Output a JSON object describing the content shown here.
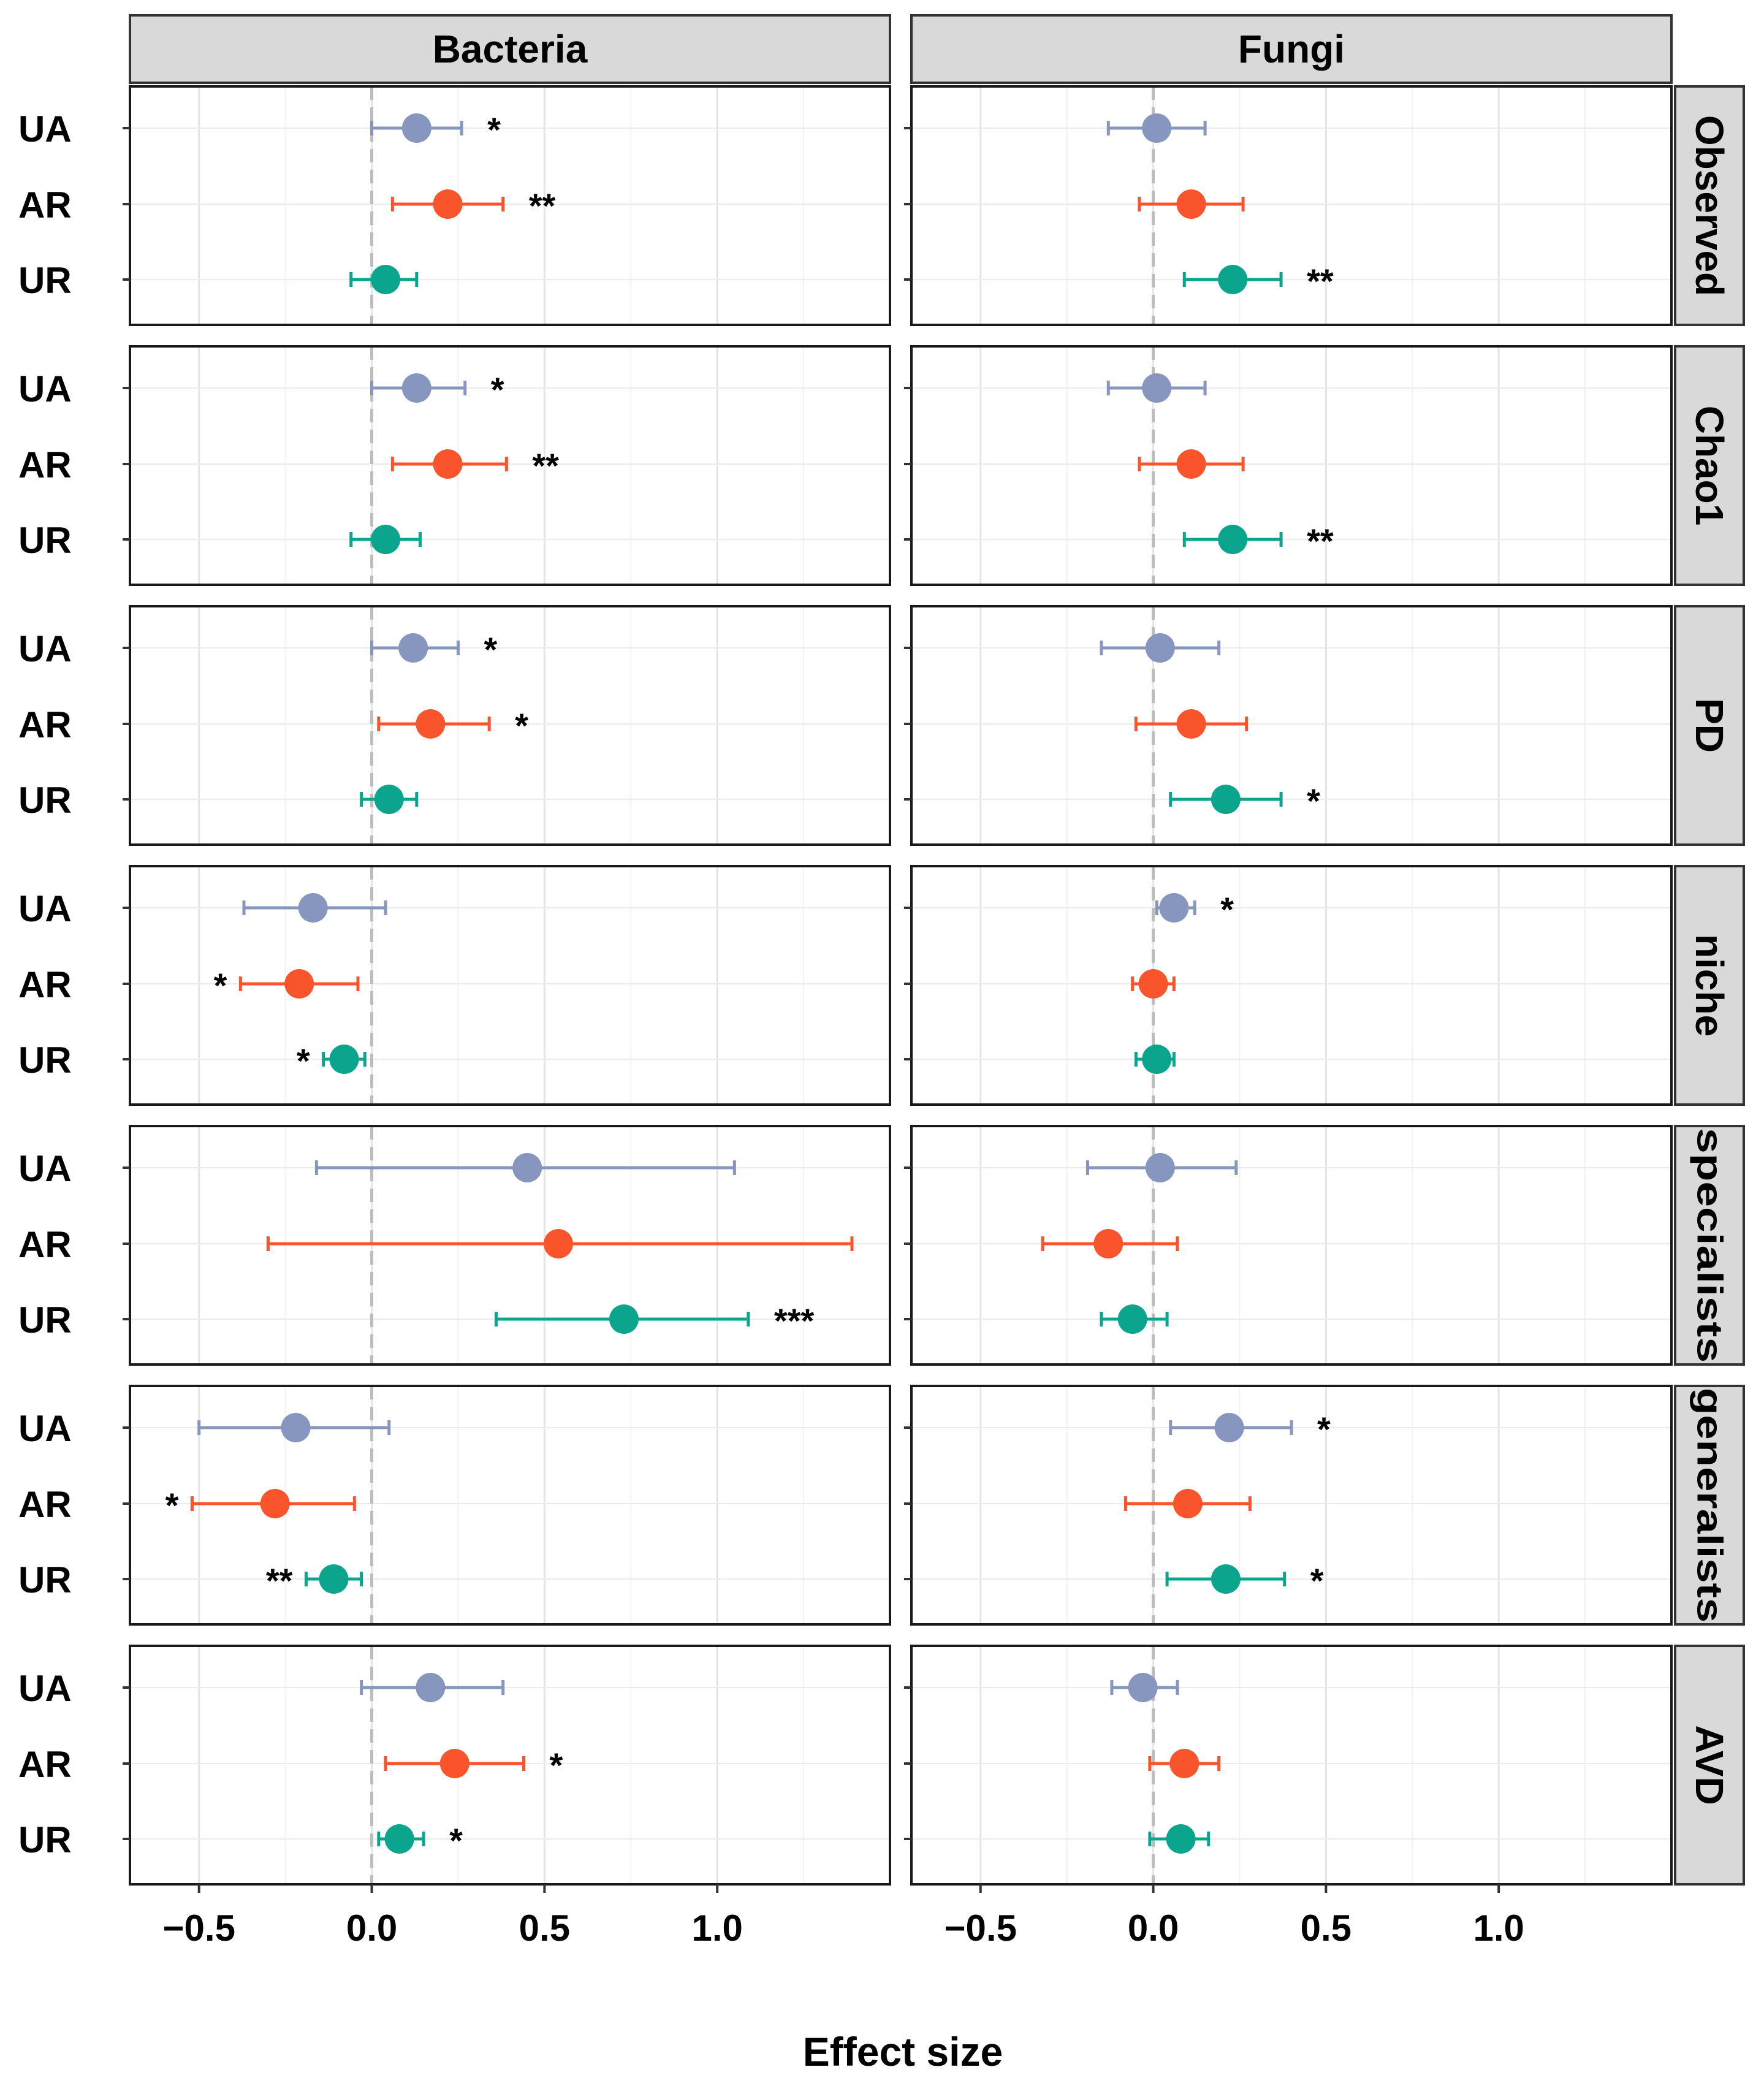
{
  "chart_data": {
    "type": "forest",
    "xlabel": "Effect size",
    "columns": [
      "Bacteria",
      "Fungi"
    ],
    "row_strips": [
      "Observed",
      "Chao1",
      "PD",
      "niche",
      "specialists",
      "generalists",
      "AVD"
    ],
    "groups": [
      "UA",
      "AR",
      "UR"
    ],
    "xlim": [
      -0.7,
      1.5
    ],
    "xticks": [
      -0.5,
      0.0,
      0.5,
      1.0
    ],
    "xtick_labels": [
      "−0.5",
      "0.0",
      "0.5",
      "1.0"
    ],
    "reference_line": 0,
    "grid": true,
    "colors": {
      "UA": "#8796BE",
      "AR": "#F9542B",
      "UR": "#0BA48C"
    },
    "panels": [
      {
        "row": "Observed",
        "column": "Bacteria",
        "points": [
          {
            "group": "UA",
            "est": 0.13,
            "lo": 0.0,
            "hi": 0.26,
            "sig": "*"
          },
          {
            "group": "AR",
            "est": 0.22,
            "lo": 0.06,
            "hi": 0.38,
            "sig": "**"
          },
          {
            "group": "UR",
            "est": 0.04,
            "lo": -0.06,
            "hi": 0.13,
            "sig": ""
          }
        ]
      },
      {
        "row": "Observed",
        "column": "Fungi",
        "points": [
          {
            "group": "UA",
            "est": 0.01,
            "lo": -0.13,
            "hi": 0.15,
            "sig": ""
          },
          {
            "group": "AR",
            "est": 0.11,
            "lo": -0.04,
            "hi": 0.26,
            "sig": ""
          },
          {
            "group": "UR",
            "est": 0.23,
            "lo": 0.09,
            "hi": 0.37,
            "sig": "**"
          }
        ]
      },
      {
        "row": "Chao1",
        "column": "Bacteria",
        "points": [
          {
            "group": "UA",
            "est": 0.13,
            "lo": 0.0,
            "hi": 0.27,
            "sig": "*"
          },
          {
            "group": "AR",
            "est": 0.22,
            "lo": 0.06,
            "hi": 0.39,
            "sig": "**"
          },
          {
            "group": "UR",
            "est": 0.04,
            "lo": -0.06,
            "hi": 0.14,
            "sig": ""
          }
        ]
      },
      {
        "row": "Chao1",
        "column": "Fungi",
        "points": [
          {
            "group": "UA",
            "est": 0.01,
            "lo": -0.13,
            "hi": 0.15,
            "sig": ""
          },
          {
            "group": "AR",
            "est": 0.11,
            "lo": -0.04,
            "hi": 0.26,
            "sig": ""
          },
          {
            "group": "UR",
            "est": 0.23,
            "lo": 0.09,
            "hi": 0.37,
            "sig": "**"
          }
        ]
      },
      {
        "row": "PD",
        "column": "Bacteria",
        "points": [
          {
            "group": "UA",
            "est": 0.12,
            "lo": 0.0,
            "hi": 0.25,
            "sig": "*"
          },
          {
            "group": "AR",
            "est": 0.17,
            "lo": 0.02,
            "hi": 0.34,
            "sig": "*"
          },
          {
            "group": "UR",
            "est": 0.05,
            "lo": -0.03,
            "hi": 0.13,
            "sig": ""
          }
        ]
      },
      {
        "row": "PD",
        "column": "Fungi",
        "points": [
          {
            "group": "UA",
            "est": 0.02,
            "lo": -0.15,
            "hi": 0.19,
            "sig": ""
          },
          {
            "group": "AR",
            "est": 0.11,
            "lo": -0.05,
            "hi": 0.27,
            "sig": ""
          },
          {
            "group": "UR",
            "est": 0.21,
            "lo": 0.05,
            "hi": 0.37,
            "sig": "*"
          }
        ]
      },
      {
        "row": "niche",
        "column": "Bacteria",
        "points": [
          {
            "group": "UA",
            "est": -0.17,
            "lo": -0.37,
            "hi": 0.04,
            "sig": ""
          },
          {
            "group": "AR",
            "est": -0.21,
            "lo": -0.38,
            "hi": -0.04,
            "sig": "*"
          },
          {
            "group": "UR",
            "est": -0.08,
            "lo": -0.14,
            "hi": -0.02,
            "sig": "*"
          }
        ]
      },
      {
        "row": "niche",
        "column": "Fungi",
        "points": [
          {
            "group": "UA",
            "est": 0.06,
            "lo": 0.01,
            "hi": 0.12,
            "sig": "*"
          },
          {
            "group": "AR",
            "est": 0.0,
            "lo": -0.06,
            "hi": 0.06,
            "sig": ""
          },
          {
            "group": "UR",
            "est": 0.01,
            "lo": -0.05,
            "hi": 0.06,
            "sig": ""
          }
        ]
      },
      {
        "row": "specialists",
        "column": "Bacteria",
        "points": [
          {
            "group": "UA",
            "est": 0.45,
            "lo": -0.16,
            "hi": 1.05,
            "sig": ""
          },
          {
            "group": "AR",
            "est": 0.54,
            "lo": -0.3,
            "hi": 1.39,
            "sig": ""
          },
          {
            "group": "UR",
            "est": 0.73,
            "lo": 0.36,
            "hi": 1.09,
            "sig": "***"
          }
        ]
      },
      {
        "row": "specialists",
        "column": "Fungi",
        "points": [
          {
            "group": "UA",
            "est": 0.02,
            "lo": -0.19,
            "hi": 0.24,
            "sig": ""
          },
          {
            "group": "AR",
            "est": -0.13,
            "lo": -0.32,
            "hi": 0.07,
            "sig": ""
          },
          {
            "group": "UR",
            "est": -0.06,
            "lo": -0.15,
            "hi": 0.04,
            "sig": ""
          }
        ]
      },
      {
        "row": "generalists",
        "column": "Bacteria",
        "points": [
          {
            "group": "UA",
            "est": -0.22,
            "lo": -0.5,
            "hi": 0.05,
            "sig": ""
          },
          {
            "group": "AR",
            "est": -0.28,
            "lo": -0.52,
            "hi": -0.05,
            "sig": "*"
          },
          {
            "group": "UR",
            "est": -0.11,
            "lo": -0.19,
            "hi": -0.03,
            "sig": "**"
          }
        ]
      },
      {
        "row": "generalists",
        "column": "Fungi",
        "points": [
          {
            "group": "UA",
            "est": 0.22,
            "lo": 0.05,
            "hi": 0.4,
            "sig": "*"
          },
          {
            "group": "AR",
            "est": 0.1,
            "lo": -0.08,
            "hi": 0.28,
            "sig": ""
          },
          {
            "group": "UR",
            "est": 0.21,
            "lo": 0.04,
            "hi": 0.38,
            "sig": "*"
          }
        ]
      },
      {
        "row": "AVD",
        "column": "Bacteria",
        "points": [
          {
            "group": "UA",
            "est": 0.17,
            "lo": -0.03,
            "hi": 0.38,
            "sig": ""
          },
          {
            "group": "AR",
            "est": 0.24,
            "lo": 0.04,
            "hi": 0.44,
            "sig": "*"
          },
          {
            "group": "UR",
            "est": 0.08,
            "lo": 0.02,
            "hi": 0.15,
            "sig": "*"
          }
        ]
      },
      {
        "row": "AVD",
        "column": "Fungi",
        "points": [
          {
            "group": "UA",
            "est": -0.03,
            "lo": -0.12,
            "hi": 0.07,
            "sig": ""
          },
          {
            "group": "AR",
            "est": 0.09,
            "lo": -0.01,
            "hi": 0.19,
            "sig": ""
          },
          {
            "group": "UR",
            "est": 0.08,
            "lo": -0.01,
            "hi": 0.16,
            "sig": ""
          }
        ]
      }
    ]
  }
}
